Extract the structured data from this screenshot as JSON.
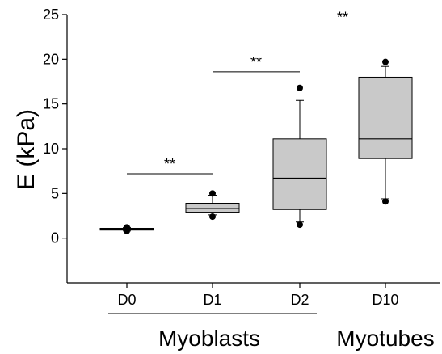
{
  "chart_data": {
    "type": "box",
    "title": "",
    "xlabel": "",
    "ylabel": "E (kPa)",
    "ylim": [
      -5,
      25
    ],
    "yticks": [
      0,
      5,
      10,
      15,
      20,
      25
    ],
    "categories": [
      "D0",
      "D1",
      "D2",
      "D10"
    ],
    "boxes": [
      {
        "category": "D0",
        "whisker_low": 0.8,
        "q1": 0.9,
        "median": 1.0,
        "q3": 1.1,
        "whisker_high": 1.2,
        "outliers": [
          0.8,
          1.2
        ]
      },
      {
        "category": "D1",
        "whisker_low": 2.6,
        "q1": 2.9,
        "median": 3.3,
        "q3": 3.9,
        "whisker_high": 4.8,
        "outliers": [
          2.4,
          5.0
        ]
      },
      {
        "category": "D2",
        "whisker_low": 1.8,
        "q1": 3.2,
        "median": 6.7,
        "q3": 11.1,
        "whisker_high": 15.4,
        "outliers": [
          1.5,
          16.8
        ]
      },
      {
        "category": "D10",
        "whisker_low": 4.4,
        "q1": 8.9,
        "median": 11.1,
        "q3": 18.0,
        "whisker_high": 19.2,
        "outliers": [
          4.1,
          19.7
        ]
      }
    ],
    "significance": [
      {
        "from": "D0",
        "to": "D1",
        "y": 7.2,
        "label": "**"
      },
      {
        "from": "D1",
        "to": "D2",
        "y": 18.6,
        "label": "**"
      },
      {
        "from": "D2",
        "to": "D10",
        "y": 23.6,
        "label": "**"
      }
    ],
    "groups": [
      {
        "label": "Myoblasts",
        "categories": [
          "D0",
          "D1",
          "D2"
        ]
      },
      {
        "label": "Myotubes",
        "categories": [
          "D10"
        ]
      }
    ],
    "grid": false,
    "legend": "none"
  }
}
